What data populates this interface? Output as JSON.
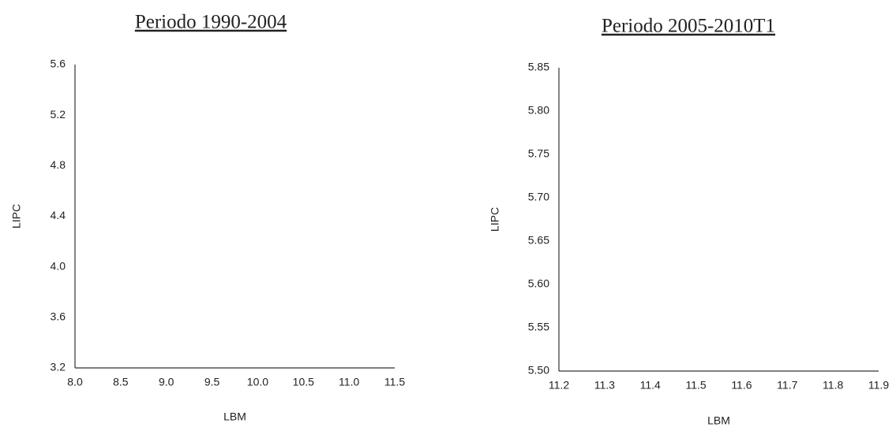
{
  "chart_data": [
    {
      "type": "scatter",
      "title": "Periodo 1990-2004",
      "x_label": "LBM",
      "y_label": "LIPC",
      "xlim": [
        8,
        11.5
      ],
      "xticks": [
        {
          "value": 8,
          "label": "8.0"
        },
        8.5,
        {
          "value": 9,
          "label": "9.0"
        },
        9.5,
        {
          "value": 10,
          "label": "10.0"
        },
        10.5,
        {
          "value": 11,
          "label": "11.0"
        },
        11.5
      ],
      "ylim": [
        3.2,
        5.6
      ],
      "yticks": [
        3.2,
        3.6,
        {
          "value": 4,
          "label": "4.0"
        },
        4.4,
        4.8,
        5.2,
        5.6
      ]
    },
    {
      "type": "scatter",
      "title": "Periodo 2005-2010T1",
      "x_label": "LBM",
      "y_label": "LIPC",
      "xlim": [
        11.2,
        11.9
      ],
      "xticks": [
        11.2,
        11.3,
        11.4,
        11.5,
        11.6,
        11.7,
        11.8,
        11.9
      ],
      "ylim": [
        5.5,
        5.85
      ],
      "yticks": [
        {
          "value": 5.5,
          "label": "5.50"
        },
        5.55,
        {
          "value": 5.6,
          "label": "5.60"
        },
        5.65,
        {
          "value": 5.7,
          "label": "5.70"
        },
        5.75,
        {
          "value": 5.8,
          "label": "5.80"
        },
        5.85
      ]
    }
  ]
}
